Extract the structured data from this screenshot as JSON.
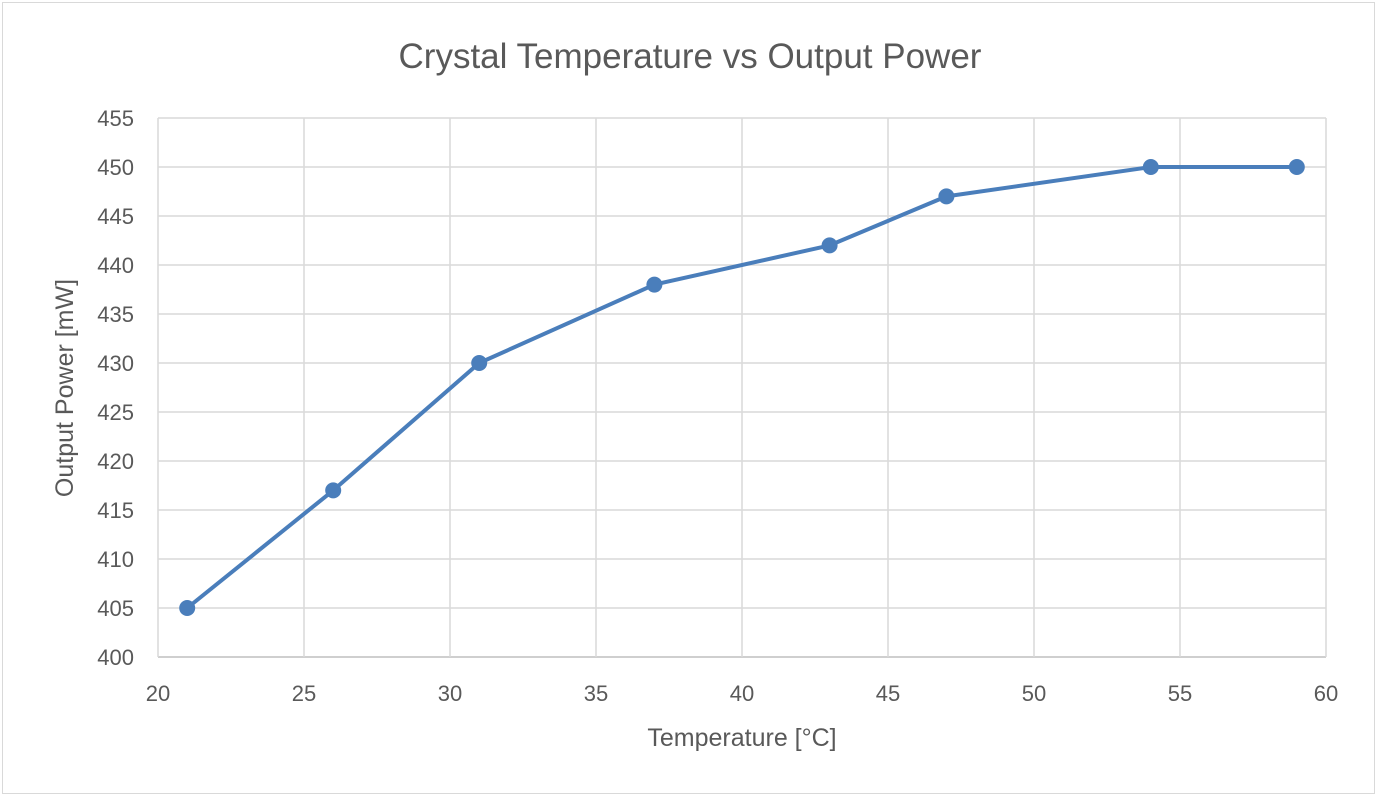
{
  "chart_data": {
    "type": "line",
    "title": "Crystal Temperature vs Output Power",
    "xlabel": "Temperature [°C]",
    "ylabel": "Output Power [mW]",
    "xlim": [
      20,
      60
    ],
    "ylim": [
      400,
      455
    ],
    "x_ticks": [
      "20",
      "25",
      "30",
      "35",
      "40",
      "45",
      "50",
      "55",
      "60"
    ],
    "y_ticks": [
      "400",
      "405",
      "410",
      "415",
      "420",
      "425",
      "430",
      "435",
      "440",
      "445",
      "450",
      "455"
    ],
    "grid": true,
    "legend": "none",
    "series": [
      {
        "color": "#4a7ebb",
        "x": [
          21,
          26,
          31,
          37,
          43,
          47,
          54,
          59
        ],
        "y": [
          405,
          417,
          430,
          438,
          442,
          447,
          450,
          450
        ]
      }
    ]
  }
}
